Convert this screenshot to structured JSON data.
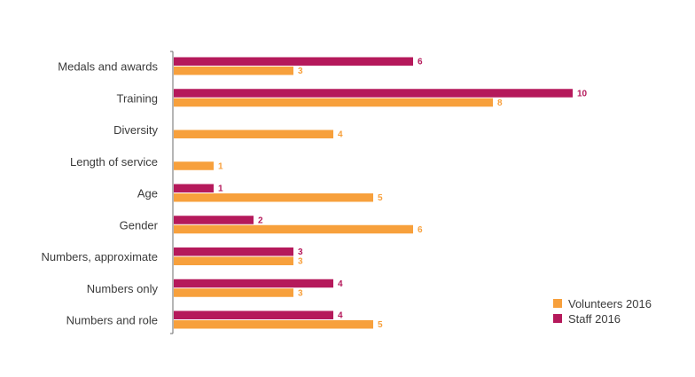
{
  "chart_data": {
    "type": "bar",
    "orientation": "horizontal",
    "categories": [
      "Medals and awards",
      "Training",
      "Diversity",
      "Length of service",
      "Age",
      "Gender",
      "Numbers, approximate",
      "Numbers only",
      "Numbers and role"
    ],
    "series": [
      {
        "name": "Staff 2016",
        "color": "#b5195b",
        "values": [
          6,
          10,
          null,
          null,
          1,
          2,
          3,
          4,
          4
        ]
      },
      {
        "name": "Volunteers 2016",
        "color": "#f7a03c",
        "values": [
          3,
          8,
          4,
          1,
          5,
          6,
          3,
          3,
          5
        ]
      }
    ],
    "legend": {
      "position": "bottom-right",
      "entries": [
        "Volunteers 2016",
        "Staff 2016"
      ]
    },
    "data_labels": true,
    "grid": false,
    "xlim": [
      0,
      10
    ]
  }
}
